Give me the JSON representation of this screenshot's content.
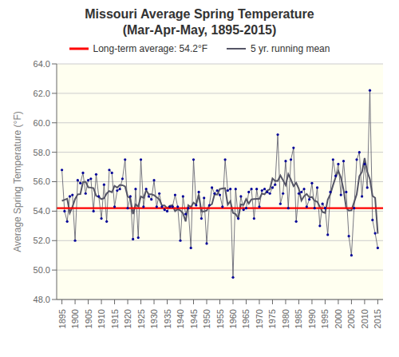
{
  "chart_data": {
    "type": "line",
    "title": "Missouri Average Spring Temperature",
    "subtitle": "(Mar-Apr-May, 1895-2015)",
    "y_label": "Average Spring Temperature (°F)",
    "x": [
      1895,
      1896,
      1897,
      1898,
      1899,
      1900,
      1901,
      1902,
      1903,
      1904,
      1905,
      1906,
      1907,
      1908,
      1909,
      1910,
      1911,
      1912,
      1913,
      1914,
      1915,
      1916,
      1917,
      1918,
      1919,
      1920,
      1921,
      1922,
      1923,
      1924,
      1925,
      1926,
      1927,
      1928,
      1929,
      1930,
      1931,
      1932,
      1933,
      1934,
      1935,
      1936,
      1937,
      1938,
      1939,
      1940,
      1941,
      1942,
      1943,
      1944,
      1945,
      1946,
      1947,
      1948,
      1949,
      1950,
      1951,
      1952,
      1953,
      1954,
      1955,
      1956,
      1957,
      1958,
      1959,
      1960,
      1961,
      1962,
      1963,
      1964,
      1965,
      1966,
      1967,
      1968,
      1969,
      1970,
      1971,
      1972,
      1973,
      1974,
      1975,
      1976,
      1977,
      1978,
      1979,
      1980,
      1981,
      1982,
      1983,
      1984,
      1985,
      1986,
      1987,
      1988,
      1989,
      1990,
      1991,
      1992,
      1993,
      1994,
      1995,
      1996,
      1997,
      1998,
      1999,
      2000,
      2001,
      2002,
      2003,
      2004,
      2005,
      2006,
      2007,
      2008,
      2009,
      2010,
      2011,
      2012,
      2013,
      2014,
      2015
    ],
    "series": [
      {
        "color": "#555566",
        "marker": "circle",
        "marker_color": "#000099",
        "values": [
          56.8,
          54.0,
          53.3,
          55.0,
          55.1,
          52.0,
          56.1,
          55.9,
          56.6,
          55.2,
          56.1,
          56.2,
          54.0,
          56.5,
          55.0,
          53.5,
          55.8,
          53.3,
          56.8,
          56.6,
          54.3,
          55.4,
          55.5,
          56.2,
          57.5,
          54.2,
          55.0,
          52.1,
          55.5,
          52.2,
          57.5,
          54.3,
          55.5,
          55.0,
          54.8,
          56.1,
          54.3,
          55.2,
          54.3,
          54.1,
          54.0,
          54.3,
          54.3,
          55.1,
          54.3,
          52.0,
          55.0,
          53.8,
          54.2,
          51.5,
          57.5,
          54.4,
          55.3,
          53.5,
          54.9,
          51.8,
          54.4,
          55.6,
          55.2,
          55.4,
          55.1,
          54.3,
          57.5,
          55.4,
          55.5,
          49.5,
          55.5,
          53.5,
          55.0,
          54.1,
          54.2,
          55.3,
          55.5,
          53.5,
          55.5,
          54.3,
          55.4,
          55.5,
          55.3,
          55.2,
          55.6,
          55.8,
          59.2,
          54.5,
          55.2,
          57.4,
          54.2,
          57.5,
          58.3,
          53.3,
          55.2,
          55.3,
          55.5,
          54.3,
          54.8,
          55.9,
          54.2,
          55.6,
          53.0,
          54.5,
          54.2,
          52.4,
          55.3,
          57.5,
          56.4,
          57.2,
          55.1,
          57.4,
          55.3,
          52.3,
          51.0,
          54.2,
          57.5,
          58.0,
          55.0,
          57.2,
          55.6,
          62.2,
          53.4,
          52.5,
          51.5
        ]
      },
      {
        "name": "5 yr. running mean",
        "color": "#555566",
        "values": [
          54.7,
          54.775,
          54.84,
          53.88,
          54.3,
          54.82,
          55.14,
          55.16,
          55.98,
          56.0,
          55.62,
          55.6,
          55.56,
          55.04,
          54.96,
          54.82,
          54.88,
          55.2,
          55.36,
          55.28,
          55.72,
          55.6,
          55.78,
          55.76,
          55.68,
          55.0,
          54.86,
          53.8,
          54.46,
          54.32,
          55.0,
          54.9,
          55.42,
          55.14,
          55.14,
          55.08,
          54.94,
          54.8,
          54.38,
          54.38,
          54.2,
          54.36,
          54.4,
          54.0,
          54.14,
          54.04,
          53.86,
          53.3,
          54.4,
          54.28,
          54.58,
          54.44,
          55.12,
          53.98,
          53.98,
          54.04,
          54.38,
          54.48,
          55.14,
          55.12,
          55.5,
          55.54,
          55.56,
          54.44,
          54.68,
          53.88,
          53.8,
          53.52,
          54.46,
          54.42,
          54.82,
          54.52,
          54.8,
          54.82,
          54.84,
          54.84,
          55.2,
          55.14,
          55.4,
          55.48,
          56.22,
          56.06,
          56.06,
          56.42,
          56.1,
          55.76,
          56.52,
          56.14,
          55.7,
          55.92,
          55.52,
          54.72,
          55.02,
          55.16,
          54.94,
          54.96,
          54.7,
          54.64,
          54.3,
          53.94,
          53.88,
          54.78,
          55.16,
          55.76,
          56.3,
          56.72,
          56.28,
          55.46,
          54.22,
          54.04,
          54.06,
          54.6,
          55.14,
          56.38,
          56.66,
          57.6,
          56.68,
          56.18,
          55.04,
          54.9,
          52.46666666666667
        ]
      }
    ],
    "hlines": [
      {
        "name": "Long-term average: 54.2°F",
        "value": 54.2,
        "color": "#ff0000"
      }
    ],
    "xlim": [
      1893,
      2017
    ],
    "xticks": [
      1895,
      1900,
      1905,
      1910,
      1915,
      1920,
      1925,
      1930,
      1935,
      1940,
      1945,
      1950,
      1955,
      1960,
      1965,
      1970,
      1975,
      1980,
      1985,
      1990,
      1995,
      2000,
      2005,
      2010,
      2015
    ],
    "ylim": [
      48.0,
      64.0
    ],
    "yticks": [
      {
        "value": 48.0,
        "label": "48.0"
      },
      {
        "value": 50.0,
        "label": "50.0"
      },
      {
        "value": 52.0,
        "label": "52.0"
      },
      {
        "value": 54.0,
        "label": "54.0"
      },
      {
        "value": 56.0,
        "label": "56.0"
      },
      {
        "value": 58.0,
        "label": "58.0"
      },
      {
        "value": 60.0,
        "label": "60.0"
      },
      {
        "value": 62.0,
        "label": "62.0"
      },
      {
        "value": 64.0,
        "label": "64.0"
      }
    ],
    "grid": true,
    "legend": "top",
    "background_color": "#fffff0"
  }
}
